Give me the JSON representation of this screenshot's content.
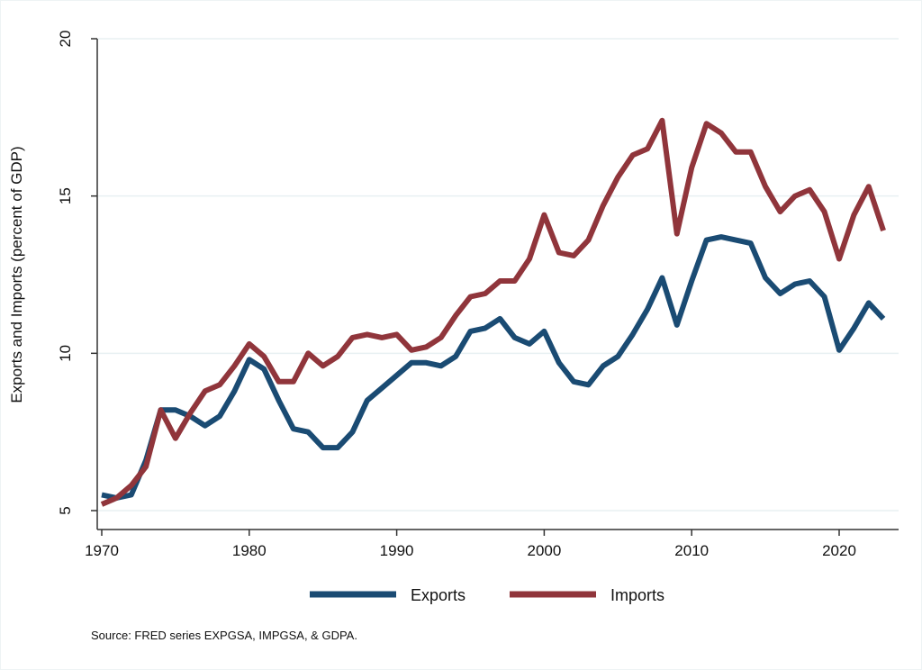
{
  "chart_data": {
    "type": "line",
    "title": "",
    "xlabel": "",
    "ylabel": "Exports and Imports (percent of GDP)",
    "xlim": [
      1970,
      2023
    ],
    "ylim": [
      5,
      20
    ],
    "xticks": [
      1970,
      1980,
      1990,
      2000,
      2010,
      2020
    ],
    "yticks": [
      5,
      10,
      15,
      20
    ],
    "xtick_labels": [
      "1970",
      "1980",
      "1990",
      "2000",
      "2010",
      "2020"
    ],
    "ytick_labels": [
      "5",
      "10",
      "15",
      "20"
    ],
    "grid": "horizontal",
    "legend_position": "bottom",
    "note": "Source: FRED series EXPGSA, IMPGSA, & GDPA.",
    "x": [
      1970,
      1971,
      1972,
      1973,
      1974,
      1975,
      1976,
      1977,
      1978,
      1979,
      1980,
      1981,
      1982,
      1983,
      1984,
      1985,
      1986,
      1987,
      1988,
      1989,
      1990,
      1991,
      1992,
      1993,
      1994,
      1995,
      1996,
      1997,
      1998,
      1999,
      2000,
      2001,
      2002,
      2003,
      2004,
      2005,
      2006,
      2007,
      2008,
      2009,
      2010,
      2011,
      2012,
      2013,
      2014,
      2015,
      2016,
      2017,
      2018,
      2019,
      2020,
      2021,
      2022,
      2023
    ],
    "series": [
      {
        "name": "Exports",
        "color": "#1a4b73",
        "values": [
          5.5,
          5.4,
          5.5,
          6.6,
          8.2,
          8.2,
          8.0,
          7.7,
          8.0,
          8.8,
          9.8,
          9.5,
          8.5,
          7.6,
          7.5,
          7.0,
          7.0,
          7.5,
          8.5,
          8.9,
          9.3,
          9.7,
          9.7,
          9.6,
          9.9,
          10.7,
          10.8,
          11.1,
          10.5,
          10.3,
          10.7,
          9.7,
          9.1,
          9.0,
          9.6,
          9.9,
          10.6,
          11.4,
          12.4,
          10.9,
          12.3,
          13.6,
          13.7,
          13.6,
          13.5,
          12.4,
          11.9,
          12.2,
          12.3,
          11.8,
          10.1,
          10.8,
          11.6,
          11.1
        ]
      },
      {
        "name": "Imports",
        "color": "#90353b",
        "values": [
          5.2,
          5.4,
          5.8,
          6.4,
          8.2,
          7.3,
          8.1,
          8.8,
          9.0,
          9.6,
          10.3,
          9.9,
          9.1,
          9.1,
          10.0,
          9.6,
          9.9,
          10.5,
          10.6,
          10.5,
          10.6,
          10.1,
          10.2,
          10.5,
          11.2,
          11.8,
          11.9,
          12.3,
          12.3,
          13.0,
          14.4,
          13.2,
          13.1,
          13.6,
          14.7,
          15.6,
          16.3,
          16.5,
          17.4,
          13.8,
          15.9,
          17.3,
          17.0,
          16.4,
          16.4,
          15.3,
          14.5,
          15.0,
          15.2,
          14.5,
          13.0,
          14.4,
          15.3,
          13.9
        ]
      }
    ]
  }
}
